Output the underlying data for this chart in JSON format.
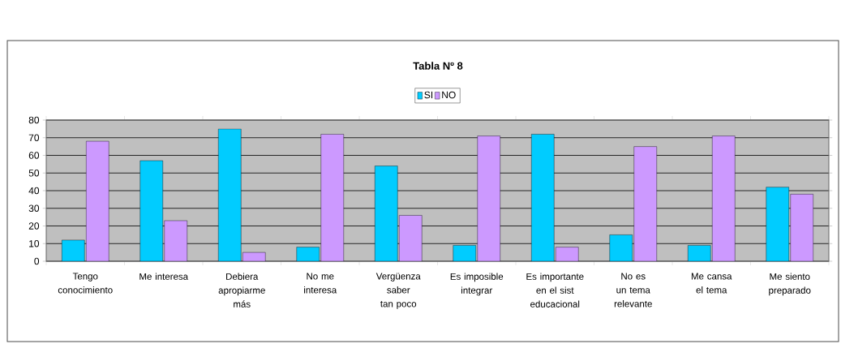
{
  "chart_data": {
    "type": "bar",
    "title": "Tabla Nº 8",
    "categories": [
      "Tengo conocimiento",
      "Me interesa",
      "Debiera apropiarme más",
      "No me interesa",
      "Vergüenza saber tan poco",
      "Es imposible integrar",
      "Es importante en el sist educacional",
      "No es un tema relevante",
      "Me cansa el tema",
      "Me siento preparado"
    ],
    "series": [
      {
        "name": "SI",
        "color": "#00ccff",
        "values": [
          12,
          57,
          75,
          8,
          54,
          9,
          72,
          15,
          9,
          42
        ]
      },
      {
        "name": "NO",
        "color": "#cc99ff",
        "values": [
          68,
          23,
          5,
          72,
          26,
          71,
          8,
          65,
          71,
          38
        ]
      }
    ],
    "ylim": [
      0,
      80
    ],
    "yticks": [
      0,
      10,
      20,
      30,
      40,
      50,
      60,
      70,
      80
    ],
    "grid": "y",
    "legend": "top"
  }
}
